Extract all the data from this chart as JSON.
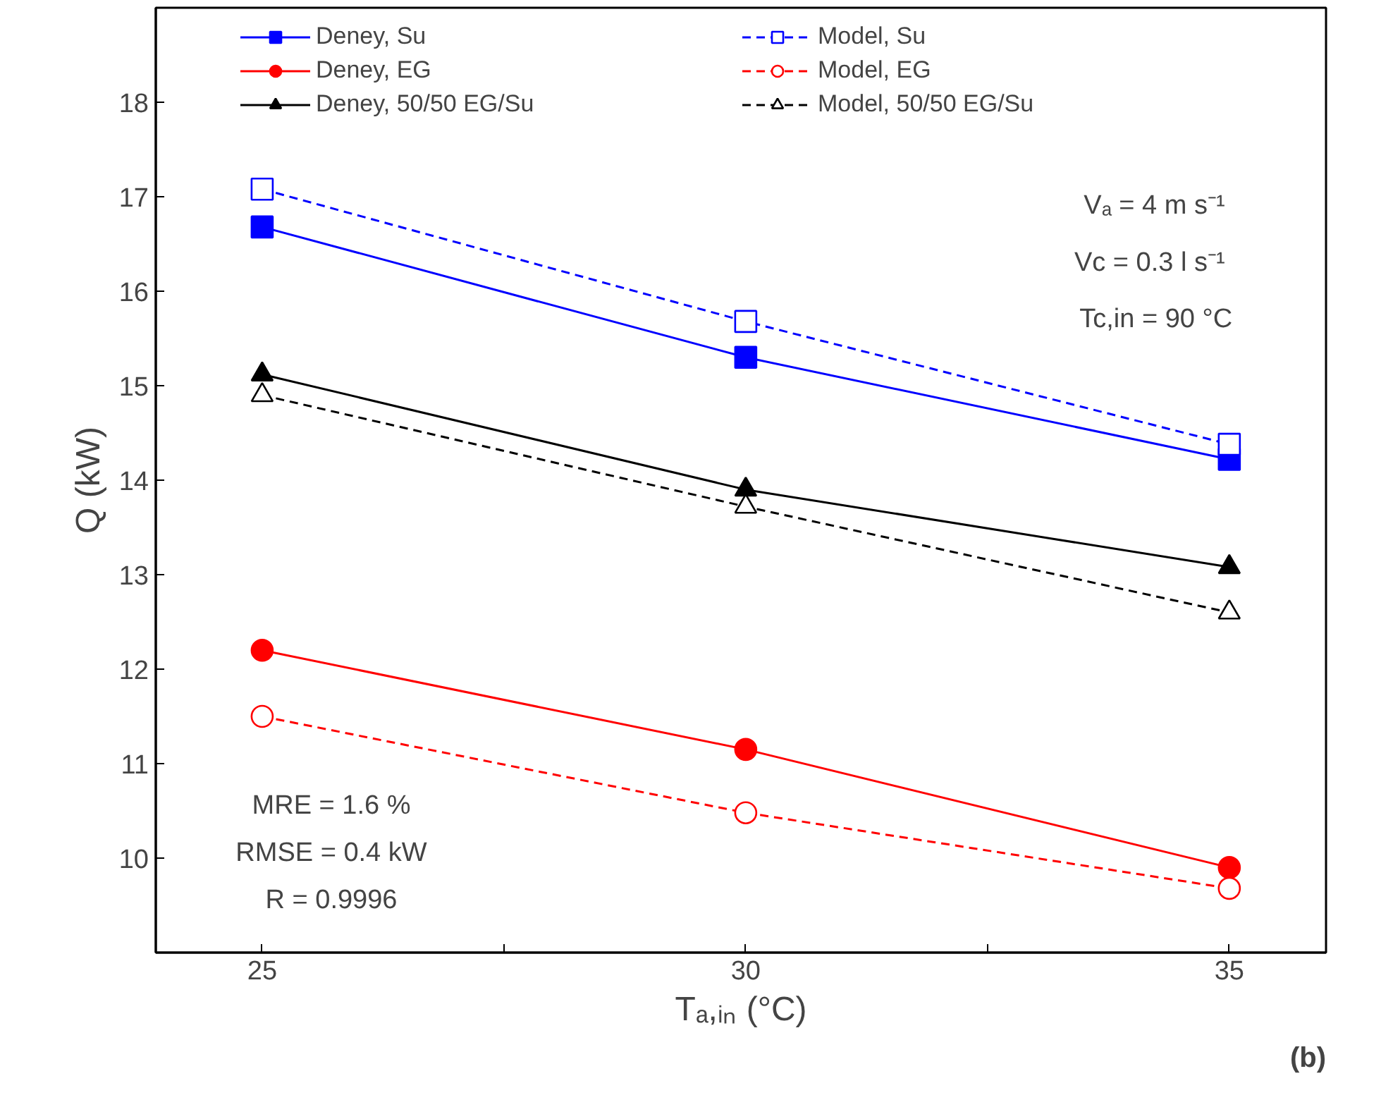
{
  "chart_data": {
    "type": "line",
    "xlabel": "Tₐ,ᵢₙ (°C)",
    "ylabel": "Q (kW)",
    "x": [
      25,
      30,
      35
    ],
    "series": [
      {
        "name": "Deney, Su",
        "color": "#0000ff",
        "marker": "square",
        "line_style": "solid",
        "values": [
          16.68,
          15.3,
          14.22
        ]
      },
      {
        "name": "Deney, EG",
        "color": "#ff0000",
        "marker": "circle",
        "line_style": "solid",
        "values": [
          12.2,
          11.15,
          9.9
        ]
      },
      {
        "name": "Deney, 50/50 EG/Su",
        "color": "#000000",
        "marker": "triangle",
        "line_style": "solid",
        "values": [
          15.12,
          13.9,
          13.08
        ]
      },
      {
        "name": "Model, Su",
        "color": "#0000ff",
        "marker": "square",
        "line_style": "dashed",
        "values": [
          17.08,
          15.68,
          14.38
        ]
      },
      {
        "name": "Model, EG",
        "color": "#ff0000",
        "marker": "circle",
        "line_style": "dashed",
        "values": [
          11.5,
          10.48,
          9.68
        ]
      },
      {
        "name": "Model, 50/50 EG/Su",
        "color": "#000000",
        "marker": "triangle",
        "line_style": "dashed",
        "values": [
          14.9,
          13.72,
          12.6
        ]
      }
    ],
    "xlim": [
      23.9,
      36
    ],
    "xticks": [
      25,
      {
        "value": 27.5,
        "label": null
      },
      30,
      {
        "value": 32.5,
        "label": null
      },
      35
    ],
    "ylim": [
      9,
      19
    ],
    "yticks": [
      10,
      11,
      12,
      13,
      14,
      15,
      16,
      17,
      18
    ],
    "grid": false,
    "legend": "top",
    "annotations": [
      "Vₐ  = 4 m s⁻¹",
      "Vc  = 0.3 l s⁻¹",
      "Tc,in = 90 °C",
      "MRE = 1.6 %",
      "RMSE = 0.4 kW",
      "R = 0.9996",
      "(b)"
    ]
  }
}
